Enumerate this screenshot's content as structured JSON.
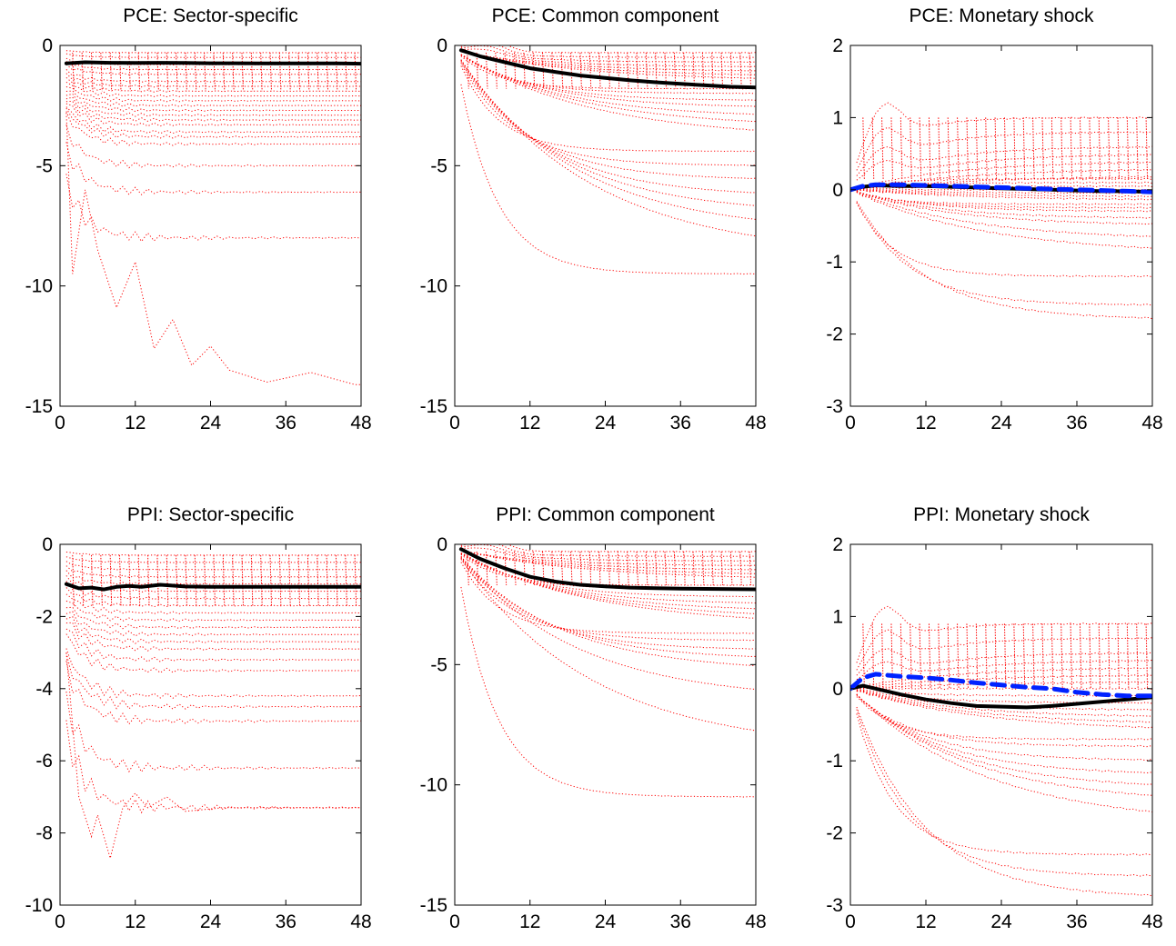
{
  "figure": {
    "colors": {
      "sector_lines": "#ff0000",
      "median": "#000000",
      "direct_shock": "#0022ff",
      "axes": "#000000"
    },
    "x_ticks": [
      0,
      12,
      24,
      36,
      48
    ]
  },
  "chart_data": [
    {
      "type": "line",
      "title": "PCE: Sector-specific",
      "xlim": [
        0,
        48
      ],
      "ylim": [
        -15,
        0
      ],
      "yticks": [
        -15,
        -10,
        -5,
        0
      ],
      "xlabel": "",
      "ylabel": "",
      "sector_bands": {
        "style": "dotted",
        "color": "#ff0000",
        "count": 22,
        "lowest_path": [
          [
            1,
            -2.8
          ],
          [
            2,
            -9.5
          ],
          [
            4,
            -6.0
          ],
          [
            6,
            -8.5
          ],
          [
            9,
            -10.9
          ],
          [
            12,
            -9.0
          ],
          [
            15,
            -12.6
          ],
          [
            18,
            -11.4
          ],
          [
            21,
            -13.3
          ],
          [
            24,
            -12.5
          ],
          [
            27,
            -13.5
          ],
          [
            33,
            -14.0
          ],
          [
            40,
            -13.6
          ],
          [
            47,
            -14.1
          ]
        ],
        "final_values": [
          -0.3,
          -0.5,
          -0.8,
          -1.0,
          -1.2,
          -1.5,
          -1.7,
          -1.9,
          -2.1,
          -2.3,
          -2.5,
          -2.7,
          -2.9,
          -3.1,
          -3.3,
          -3.6,
          -3.8,
          -4.1,
          -5.0,
          -6.1,
          -8.0,
          -14.1
        ]
      },
      "series": [
        {
          "name": "",
          "style": "solid",
          "color": "#000000",
          "x": [
            1,
            4,
            8,
            12,
            16,
            20,
            24,
            28,
            32,
            36,
            40,
            44,
            48
          ],
          "y": [
            -0.75,
            -0.7,
            -0.72,
            -0.73,
            -0.72,
            -0.73,
            -0.74,
            -0.74,
            -0.75,
            -0.75,
            -0.75,
            -0.75,
            -0.76
          ]
        }
      ]
    },
    {
      "type": "line",
      "title": "PCE: Common component",
      "xlim": [
        0,
        48
      ],
      "ylim": [
        -15,
        0
      ],
      "yticks": [
        -15,
        -10,
        -5,
        0
      ],
      "xlabel": "",
      "ylabel": "",
      "sector_bands": {
        "style": "dotted",
        "color": "#ff0000",
        "count": 22,
        "initial": -0.2,
        "final_values": [
          -0.3,
          -0.5,
          -0.7,
          -0.9,
          -1.1,
          -1.3,
          -1.5,
          -1.8,
          -2.0,
          -2.3,
          -2.6,
          -3.0,
          -3.4,
          -3.9,
          -4.4,
          -5.0,
          -5.6,
          -6.3,
          -7.0,
          -7.8,
          -8.8,
          -9.5
        ]
      },
      "series": [
        {
          "name": "",
          "style": "solid",
          "color": "#000000",
          "x": [
            1,
            4,
            8,
            12,
            16,
            20,
            24,
            28,
            32,
            36,
            40,
            44,
            48
          ],
          "y": [
            -0.2,
            -0.45,
            -0.7,
            -0.95,
            -1.1,
            -1.25,
            -1.35,
            -1.45,
            -1.53,
            -1.6,
            -1.66,
            -1.72,
            -1.75
          ]
        }
      ]
    },
    {
      "type": "line",
      "title": "PCE: Monetary shock",
      "xlim": [
        0,
        48
      ],
      "ylim": [
        -3,
        2
      ],
      "yticks": [
        -3,
        -2,
        -1,
        0,
        1,
        2
      ],
      "xlabel": "",
      "ylabel": "",
      "sector_bands": {
        "style": "dotted",
        "color": "#ff0000",
        "count": 24,
        "initial": 0.0,
        "final_values": [
          1.0,
          0.8,
          0.6,
          0.5,
          0.4,
          0.3,
          0.2,
          0.15,
          0.1,
          0.05,
          0.0,
          -0.05,
          -0.1,
          -0.15,
          -0.2,
          -0.25,
          -0.3,
          -0.4,
          -0.5,
          -0.7,
          -0.9,
          -1.2,
          -1.6,
          -1.8
        ]
      },
      "series": [
        {
          "name": "",
          "style": "solid",
          "color": "#000000",
          "x": [
            0,
            2,
            4,
            8,
            12,
            16,
            20,
            24,
            28,
            32,
            36,
            40,
            44,
            48
          ],
          "y": [
            0.0,
            0.04,
            0.06,
            0.05,
            0.05,
            0.04,
            0.03,
            0.02,
            0.01,
            0.0,
            -0.01,
            -0.02,
            -0.02,
            -0.03
          ]
        },
        {
          "name": "",
          "style": "dashed",
          "color": "#0022ff",
          "x": [
            0,
            2,
            4,
            8,
            12,
            16,
            20,
            24,
            28,
            32,
            36,
            40,
            44,
            48
          ],
          "y": [
            0.0,
            0.05,
            0.07,
            0.07,
            0.06,
            0.05,
            0.04,
            0.03,
            0.02,
            0.01,
            0.0,
            -0.01,
            -0.02,
            -0.03
          ]
        }
      ]
    },
    {
      "type": "line",
      "title": "PPI: Sector-specific",
      "xlim": [
        0,
        48
      ],
      "ylim": [
        -10,
        0
      ],
      "yticks": [
        -10,
        -8,
        -6,
        -4,
        -2,
        0
      ],
      "xlabel": "",
      "ylabel": "",
      "sector_bands": {
        "style": "dotted",
        "color": "#ff0000",
        "count": 22,
        "lowest_path": [
          [
            1,
            -3.0
          ],
          [
            3,
            -7.0
          ],
          [
            5,
            -8.1
          ],
          [
            6,
            -7.5
          ],
          [
            8,
            -8.7
          ],
          [
            10,
            -7.3
          ],
          [
            12,
            -6.9
          ],
          [
            14,
            -7.3
          ],
          [
            17,
            -7.0
          ],
          [
            20,
            -7.4
          ],
          [
            26,
            -7.3
          ],
          [
            35,
            -7.3
          ],
          [
            48,
            -7.3
          ]
        ],
        "final_values": [
          -0.3,
          -0.5,
          -0.7,
          -0.9,
          -1.1,
          -1.3,
          -1.5,
          -1.7,
          -1.9,
          -2.1,
          -2.3,
          -2.5,
          -2.7,
          -2.9,
          -3.2,
          -3.5,
          -4.2,
          -4.5,
          -4.9,
          -6.2,
          -7.3,
          -7.4
        ]
      },
      "series": [
        {
          "name": "",
          "style": "solid",
          "color": "#000000",
          "x": [
            1,
            3,
            5,
            7,
            9,
            11,
            13,
            16,
            20,
            24,
            28,
            32,
            36,
            40,
            44,
            48
          ],
          "y": [
            -1.1,
            -1.22,
            -1.2,
            -1.25,
            -1.18,
            -1.15,
            -1.18,
            -1.12,
            -1.17,
            -1.18,
            -1.18,
            -1.18,
            -1.18,
            -1.18,
            -1.18,
            -1.18
          ]
        }
      ]
    },
    {
      "type": "line",
      "title": "PPI: Common component",
      "xlim": [
        0,
        48
      ],
      "ylim": [
        -15,
        0
      ],
      "yticks": [
        -15,
        -10,
        -5,
        0
      ],
      "xlabel": "",
      "ylabel": "",
      "sector_bands": {
        "style": "dotted",
        "color": "#ff0000",
        "count": 22,
        "initial": -0.2,
        "final_values": [
          -0.3,
          -0.5,
          -0.7,
          -0.9,
          -1.1,
          -1.3,
          -1.5,
          -1.7,
          -1.9,
          -2.2,
          -2.5,
          -2.8,
          -3.1,
          -3.4,
          -3.7,
          -4.0,
          -4.4,
          -4.8,
          -5.3,
          -6.5,
          -8.6,
          -10.5
        ]
      },
      "series": [
        {
          "name": "",
          "style": "solid",
          "color": "#000000",
          "x": [
            1,
            4,
            8,
            12,
            16,
            20,
            24,
            28,
            32,
            36,
            40,
            44,
            48
          ],
          "y": [
            -0.2,
            -0.6,
            -1.0,
            -1.35,
            -1.55,
            -1.68,
            -1.75,
            -1.8,
            -1.82,
            -1.84,
            -1.85,
            -1.86,
            -1.87
          ]
        }
      ]
    },
    {
      "type": "line",
      "title": "PPI: Monetary shock",
      "xlim": [
        0,
        48
      ],
      "ylim": [
        -3,
        2
      ],
      "yticks": [
        -3,
        -2,
        -1,
        0,
        1,
        2
      ],
      "xlabel": "",
      "ylabel": "",
      "sector_bands": {
        "style": "dotted",
        "color": "#ff0000",
        "count": 24,
        "initial": 0.0,
        "final_values": [
          0.9,
          0.7,
          0.5,
          0.4,
          0.3,
          0.2,
          0.1,
          0.0,
          -0.1,
          -0.2,
          -0.3,
          -0.4,
          -0.5,
          -0.6,
          -0.7,
          -0.8,
          -1.0,
          -1.2,
          -1.4,
          -1.6,
          -1.9,
          -2.3,
          -2.6,
          -2.9
        ]
      },
      "series": [
        {
          "name": "",
          "style": "solid",
          "color": "#000000",
          "x": [
            0,
            2,
            4,
            8,
            12,
            16,
            20,
            24,
            28,
            32,
            36,
            40,
            44,
            48
          ],
          "y": [
            0.0,
            0.04,
            0.0,
            -0.08,
            -0.15,
            -0.2,
            -0.24,
            -0.25,
            -0.26,
            -0.24,
            -0.21,
            -0.18,
            -0.15,
            -0.12
          ]
        },
        {
          "name": "",
          "style": "dashed",
          "color": "#0022ff",
          "x": [
            0,
            2,
            4,
            8,
            12,
            16,
            20,
            24,
            28,
            32,
            36,
            40,
            44,
            48
          ],
          "y": [
            0.0,
            0.15,
            0.2,
            0.17,
            0.15,
            0.12,
            0.08,
            0.05,
            0.02,
            0.0,
            -0.05,
            -0.08,
            -0.1,
            -0.1
          ]
        }
      ]
    }
  ]
}
